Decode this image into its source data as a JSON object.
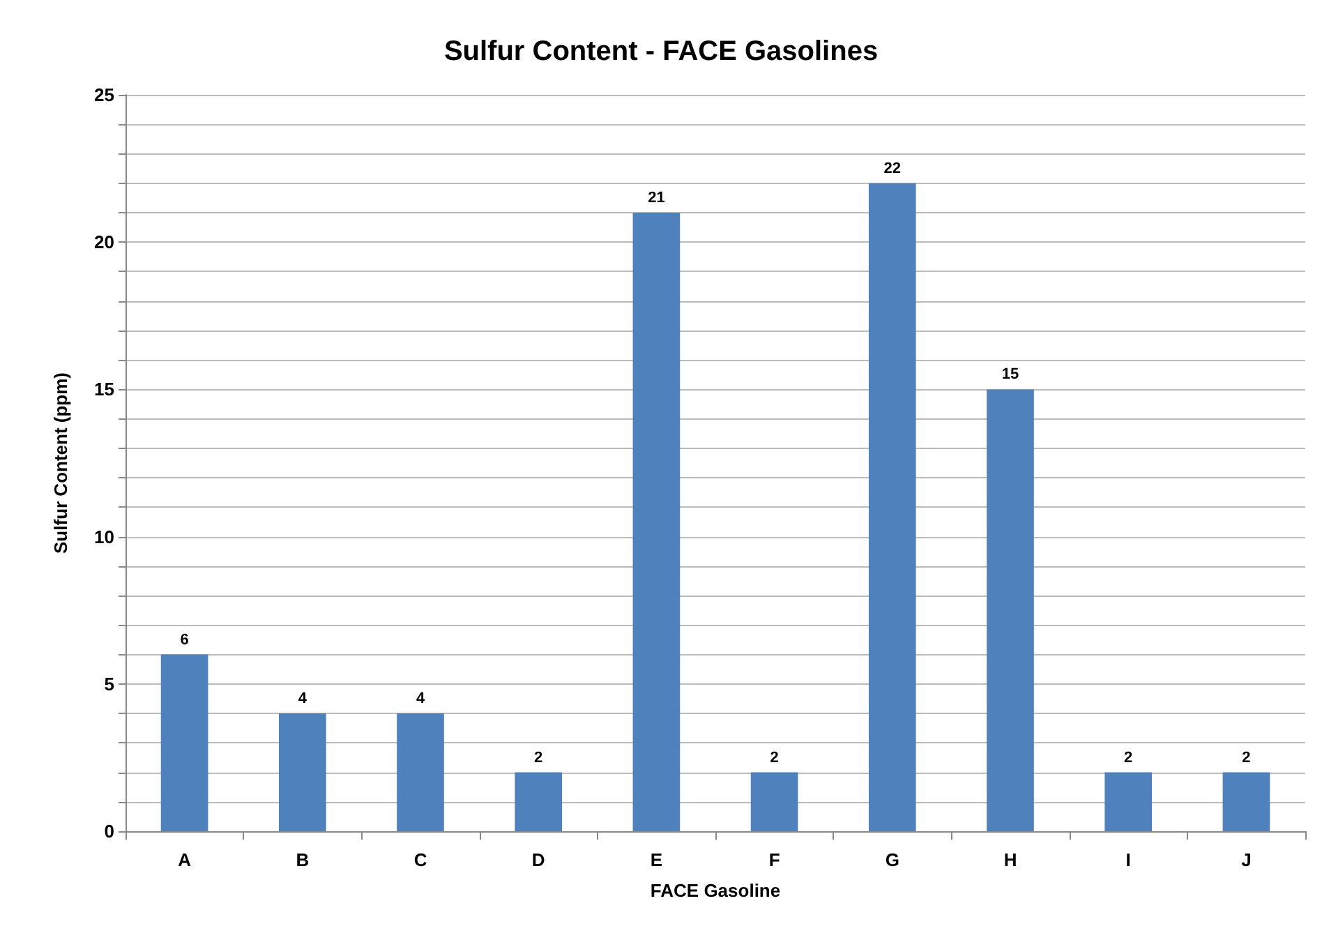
{
  "chart_data": {
    "type": "bar",
    "title": "Sulfur Content - FACE Gasolines",
    "xlabel": "FACE Gasoline",
    "ylabel": "Sulfur Content (ppm)",
    "categories": [
      "A",
      "B",
      "C",
      "D",
      "E",
      "F",
      "G",
      "H",
      "I",
      "J"
    ],
    "values": [
      6,
      4,
      4,
      2,
      21,
      2,
      22,
      15,
      2,
      2
    ],
    "color": "#4f81bd",
    "ylim": [
      0,
      25
    ],
    "yticks": [
      0,
      {
        "value": 1,
        "label": null
      },
      {
        "value": 2,
        "label": null
      },
      {
        "value": 3,
        "label": null
      },
      {
        "value": 4,
        "label": null
      },
      5,
      {
        "value": 6,
        "label": null
      },
      {
        "value": 7,
        "label": null
      },
      {
        "value": 8,
        "label": null
      },
      {
        "value": 9,
        "label": null
      },
      10,
      {
        "value": 11,
        "label": null
      },
      {
        "value": 12,
        "label": null
      },
      {
        "value": 13,
        "label": null
      },
      {
        "value": 14,
        "label": null
      },
      15,
      {
        "value": 16,
        "label": null
      },
      {
        "value": 17,
        "label": null
      },
      {
        "value": 18,
        "label": null
      },
      {
        "value": 19,
        "label": null
      },
      20,
      {
        "value": 21,
        "label": null
      },
      {
        "value": 22,
        "label": null
      },
      {
        "value": 23,
        "label": null
      },
      {
        "value": 24,
        "label": null
      },
      25
    ],
    "grid": "y",
    "data_labels": true
  }
}
